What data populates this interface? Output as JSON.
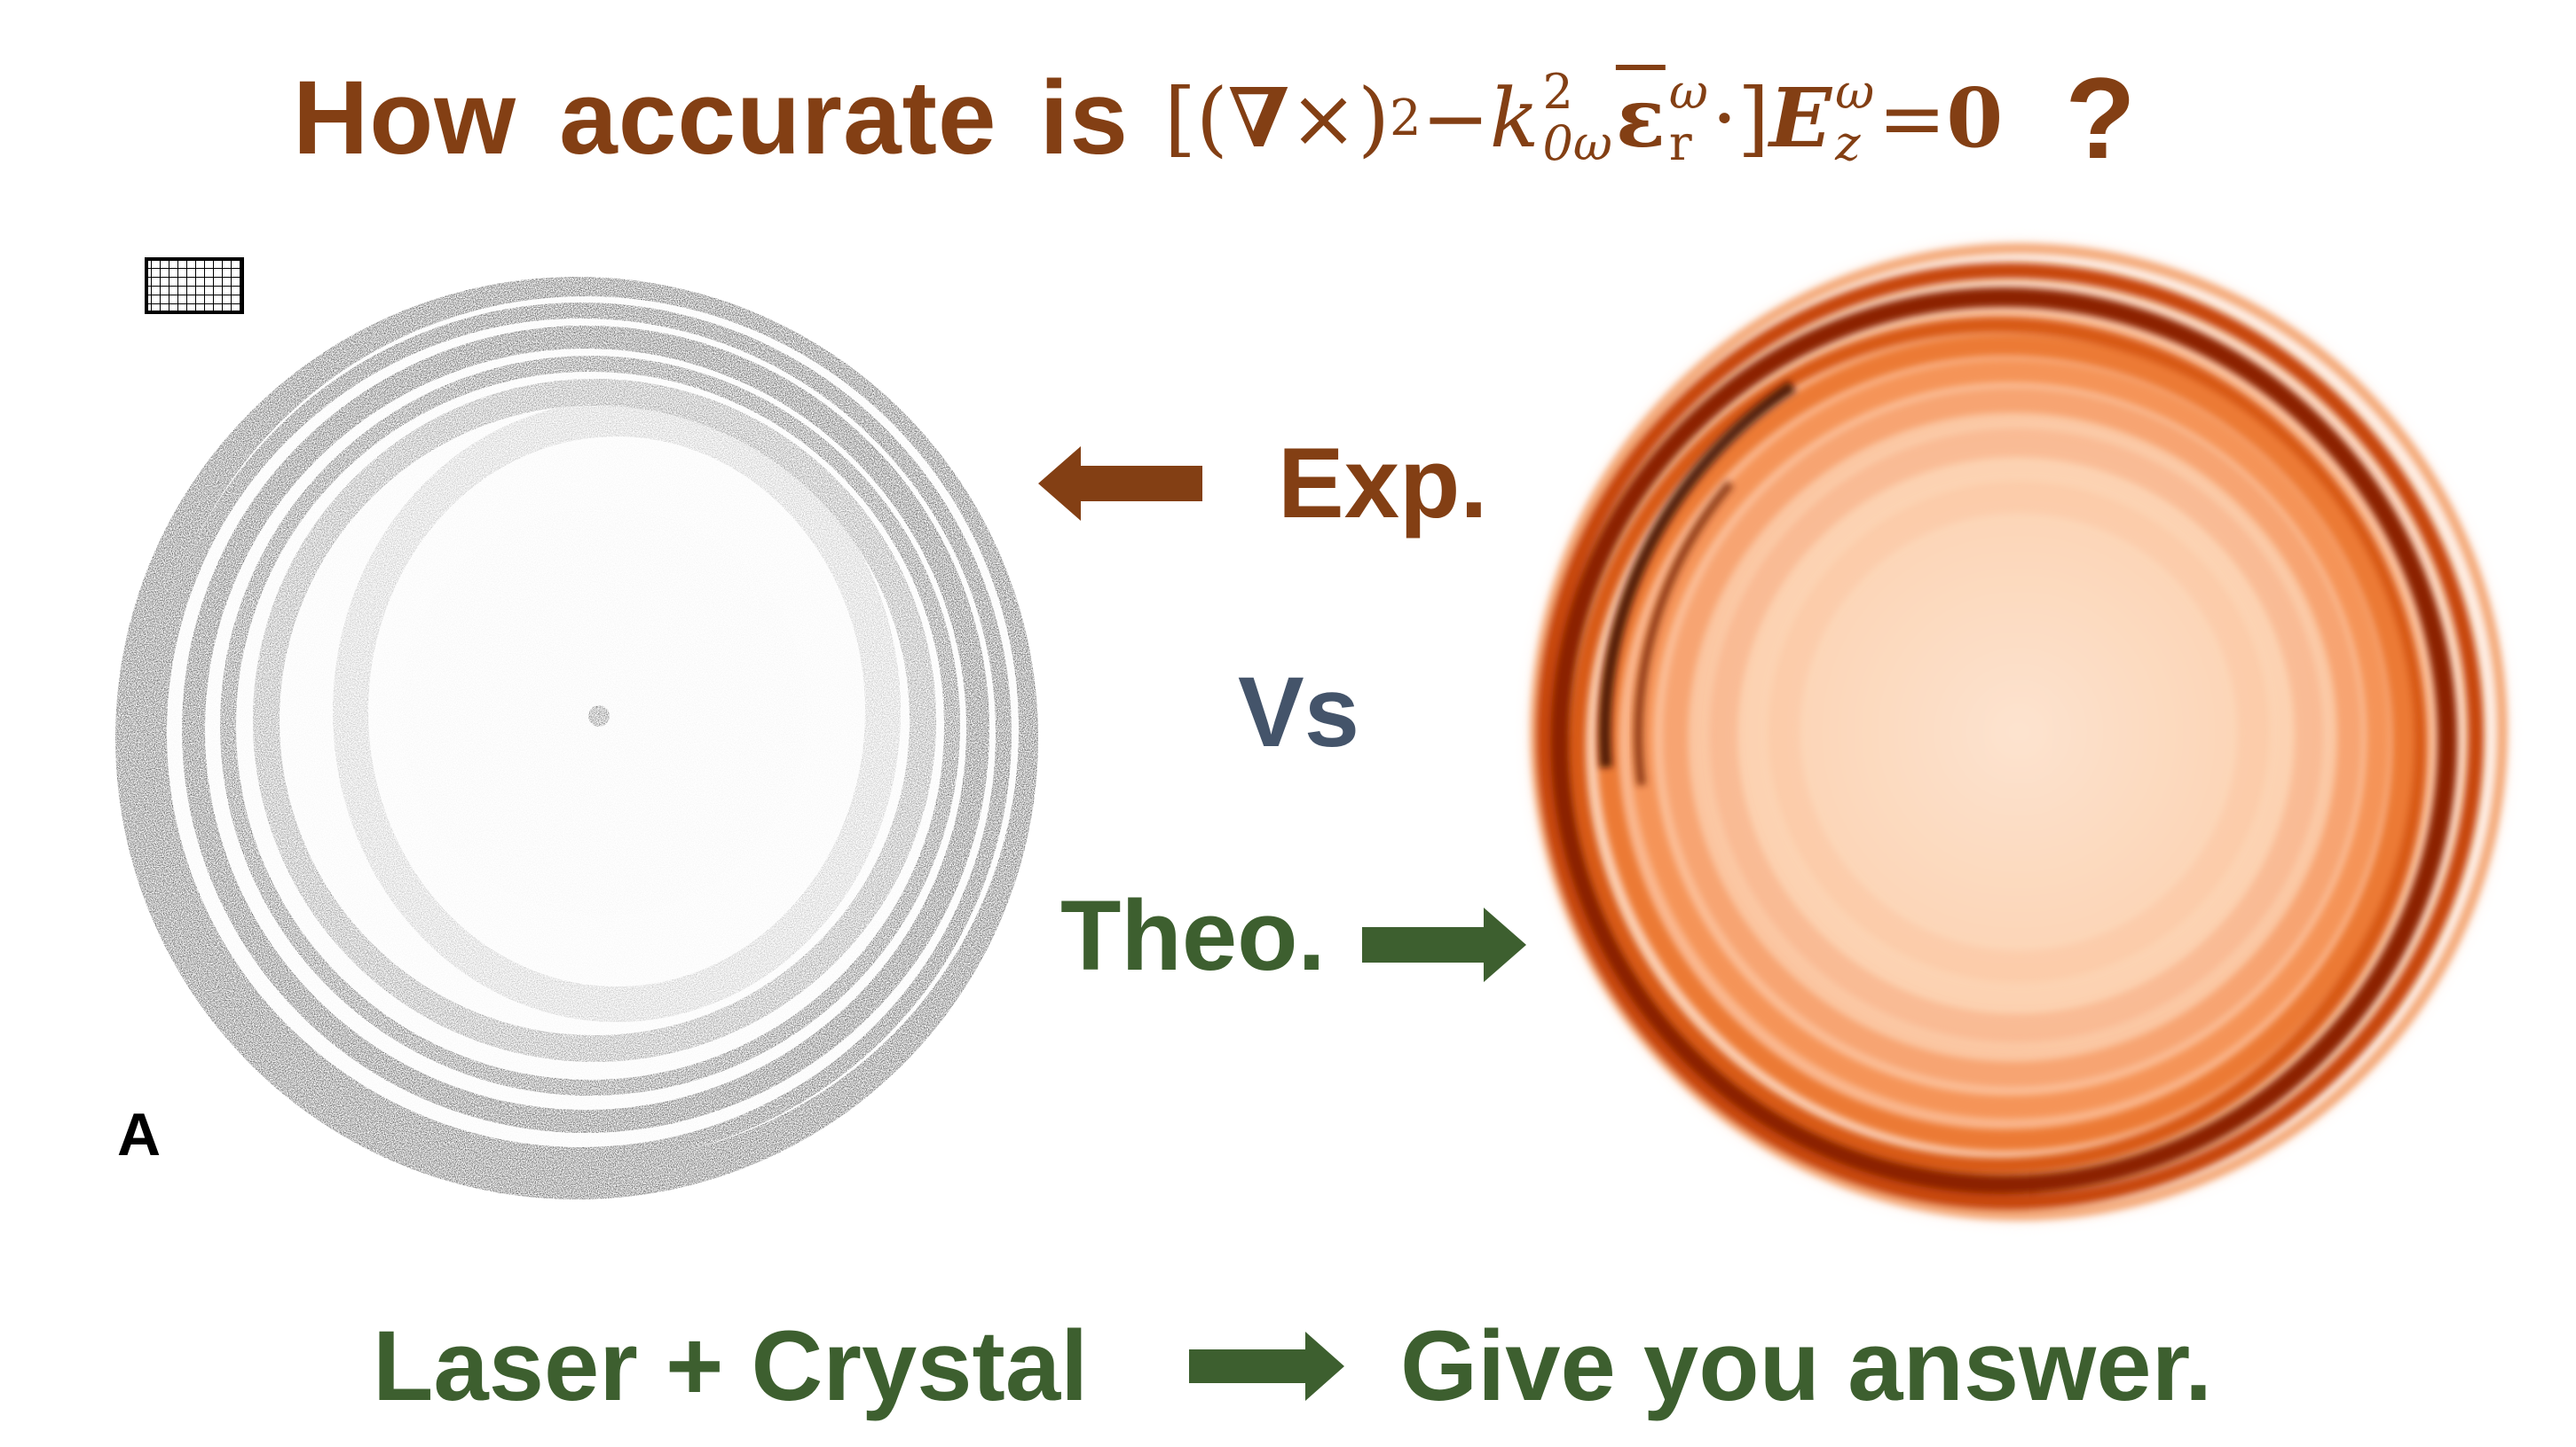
{
  "title": {
    "question_words": [
      "How",
      "accurate",
      "is"
    ],
    "equation": {
      "open": "[(",
      "nabla": "∇",
      "cross": " ×)",
      "sq": "2",
      "minus": " − ",
      "k": "k",
      "k_sup": "2",
      "k_sub": "0ω",
      "eps": "ε",
      "eps_sup": "ω",
      "eps_sub": "r",
      "dot": " ·] ",
      "E": "E",
      "E_sup": "ω",
      "E_sub": "z",
      "equals": " = ",
      "zero": "0"
    },
    "question_mark": "?"
  },
  "labels": {
    "experiment": "Exp.",
    "versus": "Vs",
    "theory": "Theo."
  },
  "left_panel": {
    "label": "A"
  },
  "bottom": {
    "left": "Laser + Crystal",
    "right": "Give you answer."
  },
  "colors": {
    "brown": "#833f14",
    "green": "#3d5f2f",
    "slate": "#44546a"
  }
}
